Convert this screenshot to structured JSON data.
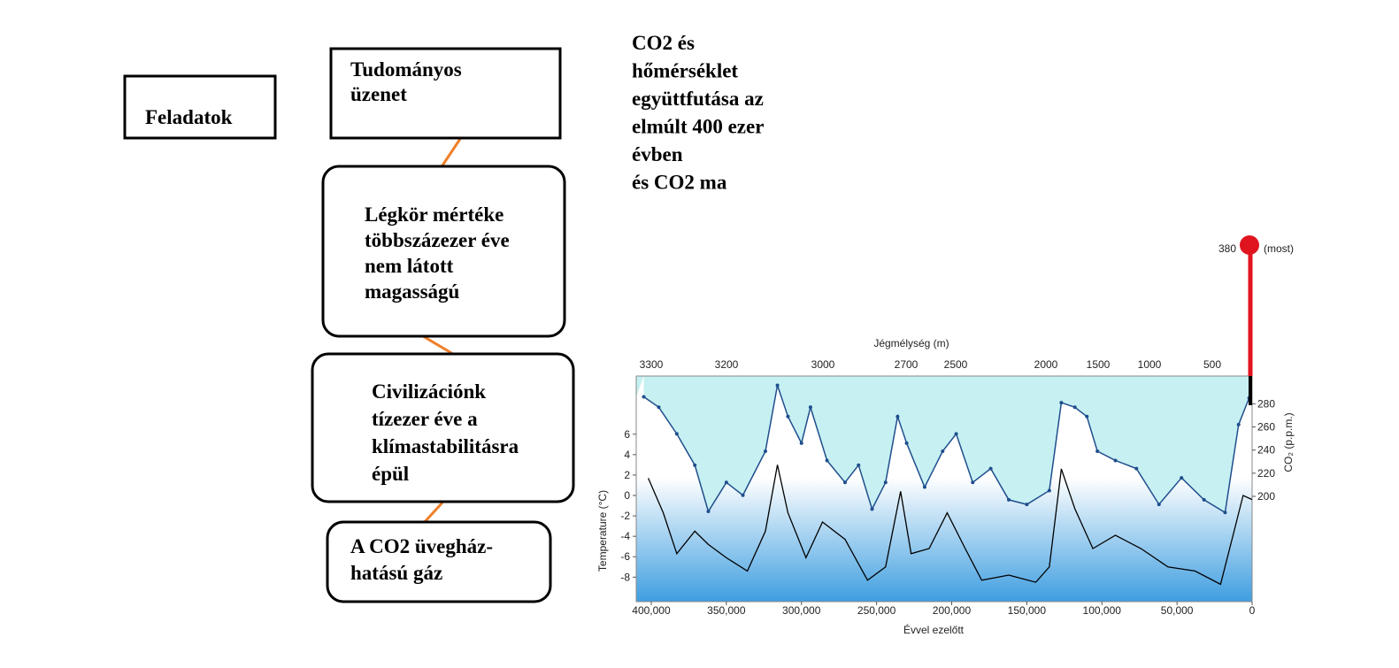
{
  "diagram": {
    "tasks": "Feladatok",
    "nodes": [
      {
        "lines": [
          "Tudományos",
          "üzenet"
        ]
      },
      {
        "lines": [
          "Légkör mértéke",
          "többszázezer éve",
          "nem látott",
          "magasságú"
        ]
      },
      {
        "lines": [
          "Civilizációnk",
          "tízezer éve a",
          "klímastabilitásra",
          "épül"
        ]
      },
      {
        "lines": [
          "A CO2 üvegház-",
          "hatású gáz"
        ]
      }
    ]
  },
  "heading": [
    "CO2 és",
    "hőmérséklet",
    "együttfutása az",
    "elmúlt 400 ezer",
    "évben",
    "és CO2 ma"
  ],
  "chart": {
    "type": "line",
    "top_axis_title": "Jégmélység (m)",
    "top_ticks": [
      "3300",
      "3200",
      "3000",
      "2700",
      "2500",
      "2000",
      "1500",
      "1000",
      "500"
    ],
    "x_title": "Évvel ezelőtt",
    "y_title": "Temperature (°C)",
    "y2_title": "CO₂ (p.p.m.)",
    "xlim": [
      410000,
      0
    ],
    "xticks": [
      {
        "value": 400000,
        "label": "400,000"
      },
      {
        "value": 350000,
        "label": "350,000"
      },
      {
        "value": 300000,
        "label": "300,000"
      },
      {
        "value": 250000,
        "label": "250,000"
      },
      {
        "value": 200000,
        "label": "200,000"
      },
      {
        "value": 150000,
        "label": "150,000"
      },
      {
        "value": 100000,
        "label": "100,000"
      },
      {
        "value": 50000,
        "label": "50,000"
      },
      0
    ],
    "ylim": [
      -10.4,
      11.7
    ],
    "yticks": [
      -8,
      -6,
      -4,
      -2,
      0,
      2,
      4,
      6
    ],
    "y2lim": [
      109,
      304
    ],
    "y2ticks": [
      200,
      220,
      240,
      260,
      280
    ],
    "series": [
      {
        "name": "CO2",
        "axis": "y2",
        "color": "#1f4e8c",
        "x": [
          405000,
          395000,
          383000,
          371000,
          362000,
          350000,
          339000,
          324000,
          316000,
          309000,
          300000,
          294000,
          283000,
          271000,
          262000,
          253000,
          244000,
          236000,
          230000,
          218000,
          206000,
          197000,
          186000,
          174000,
          162000,
          150000,
          135000,
          127000,
          118000,
          110000,
          103000,
          91000,
          77000,
          62000,
          47000,
          32000,
          18000,
          9000,
          2000
        ],
        "values": [
          286,
          277,
          254,
          227,
          187,
          212,
          201,
          239,
          296,
          269,
          246,
          277,
          231,
          212,
          227,
          189,
          212,
          269,
          246,
          208,
          239,
          254,
          212,
          224,
          197,
          193,
          205,
          281,
          277,
          269,
          239,
          231,
          224,
          193,
          216,
          197,
          186,
          262,
          285
        ]
      },
      {
        "name": "Temperature",
        "color": "#000000",
        "x": [
          402000,
          392000,
          383000,
          371000,
          362000,
          350000,
          336000,
          324000,
          316000,
          309000,
          297000,
          286000,
          271000,
          256000,
          244000,
          234000,
          227000,
          215000,
          203000,
          191000,
          180000,
          162000,
          144000,
          135000,
          127000,
          118000,
          106000,
          91000,
          74000,
          56000,
          38000,
          21000,
          12000,
          6000,
          0
        ],
        "values": [
          1.7,
          -1.7,
          -5.7,
          -3.5,
          -4.8,
          -6.1,
          -7.4,
          -3.5,
          3.0,
          -1.7,
          -6.1,
          -2.6,
          -4.3,
          -8.3,
          -7.0,
          0.4,
          -5.7,
          -5.2,
          -1.7,
          -5.2,
          -8.3,
          -7.8,
          -8.5,
          -7.0,
          2.6,
          -1.3,
          -5.2,
          -3.9,
          -5.2,
          -7.0,
          -7.4,
          -8.7,
          -3.5,
          0.0,
          -0.4
        ]
      }
    ],
    "now_value": 380,
    "now_label": "(most)",
    "now_color": "#e0141e"
  }
}
